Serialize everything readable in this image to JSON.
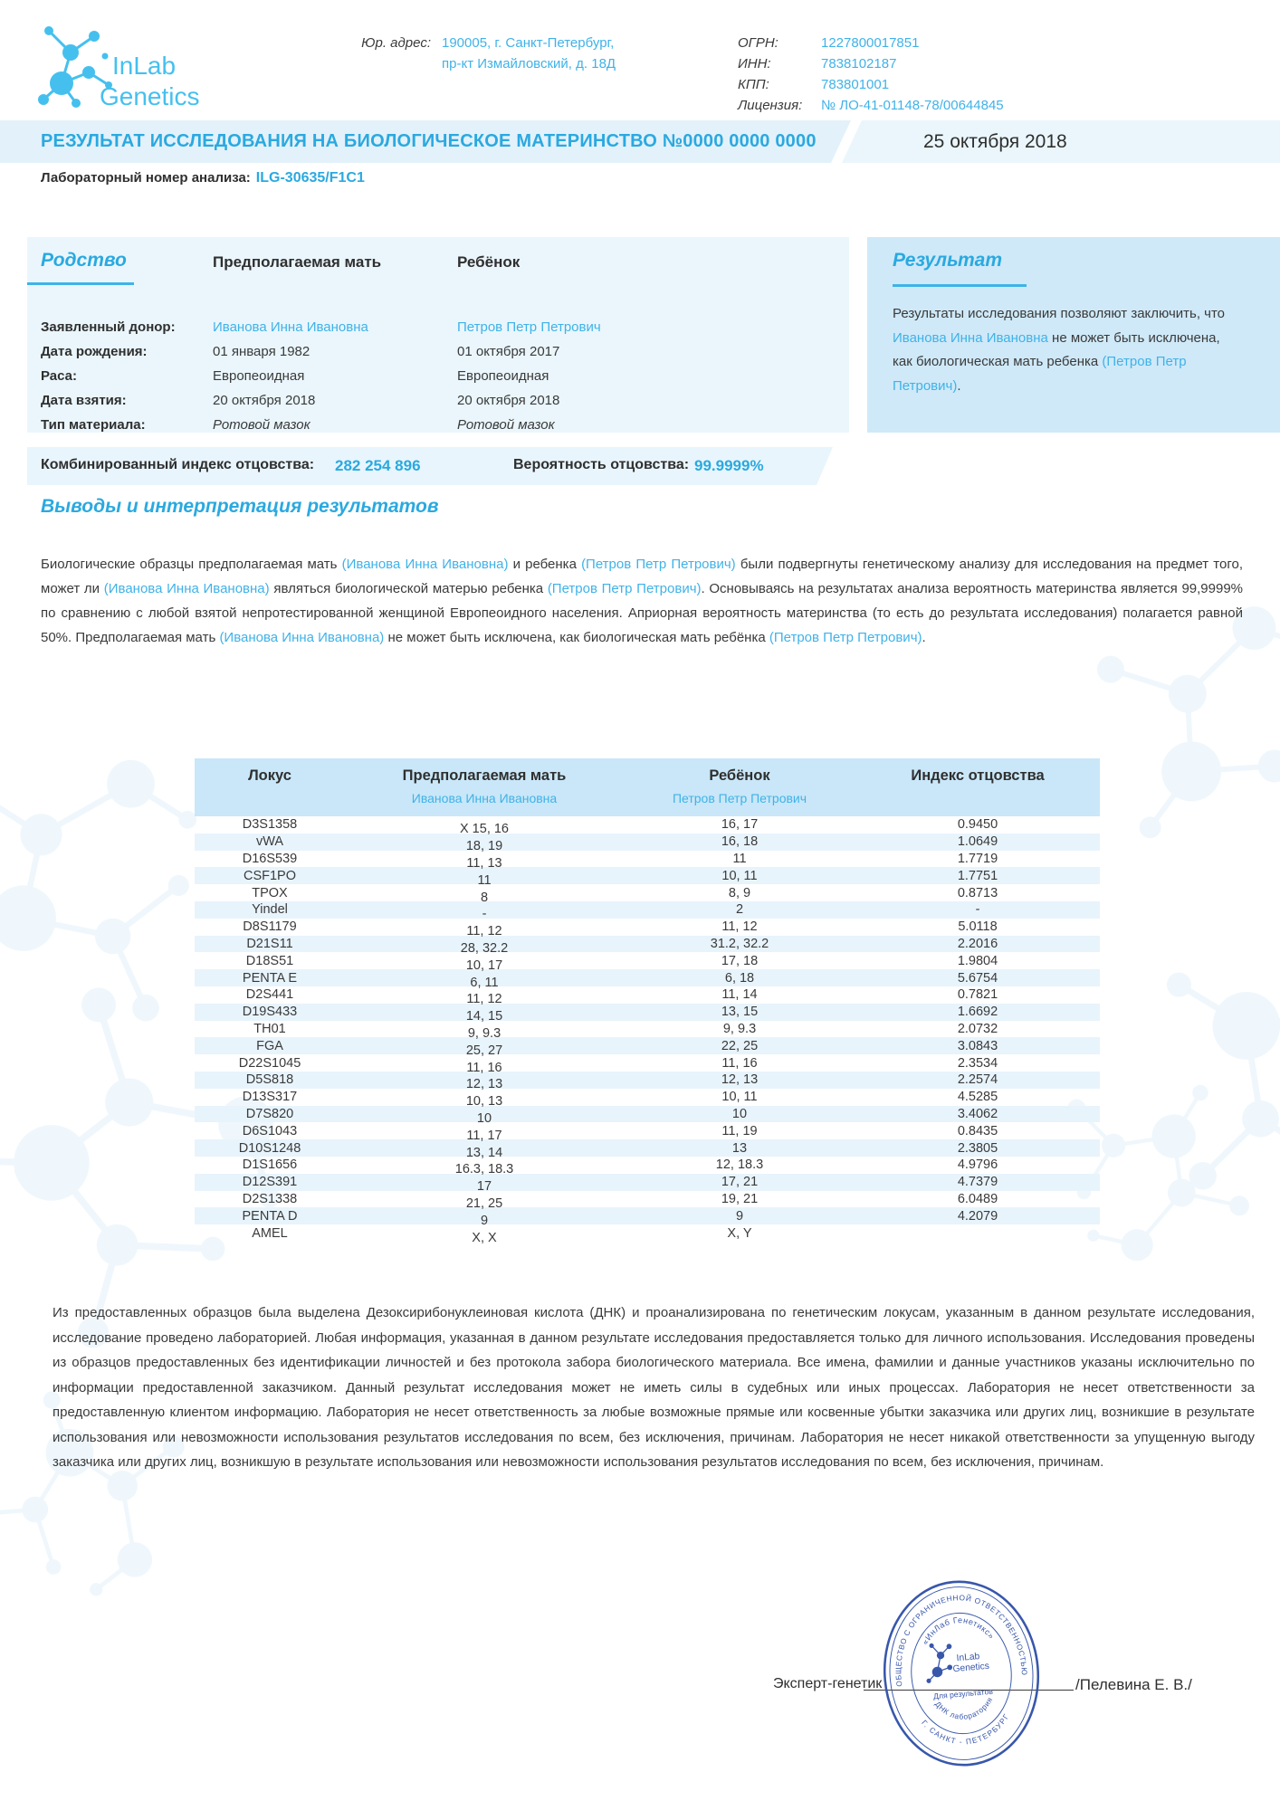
{
  "header": {
    "logo_line1": "InLab",
    "logo_line2": "Genetics",
    "address_label": "Юр. адрес:",
    "address_line1": "190005, г. Санкт-Петербург,",
    "address_line2": "пр-кт Измайловский, д. 18Д",
    "registry": [
      {
        "label": "ОГРН:",
        "value": "1227800017851"
      },
      {
        "label": "ИНН:",
        "value": "7838102187"
      },
      {
        "label": "КПП:",
        "value": "783801001"
      },
      {
        "label": "Лицензия:",
        "value": "№ ЛО-41-01148-78/00644845"
      }
    ]
  },
  "title_bar": {
    "title": "РЕЗУЛЬТАТ ИССЛЕДОВАНИЯ НА БИОЛОГИЧЕСКОЕ МАТЕРИНСТВО №0000 0000 0000",
    "date": "25 октября 2018"
  },
  "lab_number": {
    "label": "Лабораторный номер анализа:",
    "value": "ILG-30635/F1C1"
  },
  "kinship": {
    "heading": "Родство",
    "col_mother": "Предполагаемая мать",
    "col_child": "Ребёнок",
    "rows": [
      {
        "label": "Заявленный донор:",
        "mother": "Иванова Инна Ивановна",
        "child": "Петров Петр Петрович",
        "style": "blue"
      },
      {
        "label": "Дата рождения:",
        "mother": "01 января 1982",
        "child": "01 октября 2017",
        "style": "plain"
      },
      {
        "label": "Раса:",
        "mother": "Европеоидная",
        "child": "Европеоидная",
        "style": "plain"
      },
      {
        "label": "Дата взятия:",
        "mother": "20 октября 2018",
        "child": "20 октября 2018",
        "style": "plain"
      },
      {
        "label": "Тип материала:",
        "mother": "Ротовой мазок",
        "child": "Ротовой мазок",
        "style": "italic"
      }
    ]
  },
  "result_box": {
    "heading": "Результат",
    "parts": [
      {
        "t": "Результаты исследования позволяют заключить, что ",
        "blue": false
      },
      {
        "t": "Иванова Инна Ивановна",
        "blue": true
      },
      {
        "t": " не может быть исключена, как биологическая мать ребенка ",
        "blue": false
      },
      {
        "t": "(Петров Петр Петрович)",
        "blue": true
      },
      {
        "t": ".",
        "blue": false
      }
    ]
  },
  "index_bar": {
    "label_1": "Комбинированный индекс отцовства:",
    "value_1": "282 254 896",
    "label_2": "Вероятность отцовства:",
    "value_2": "99.9999%"
  },
  "conclusions_heading": "Выводы и интерпретация результатов",
  "intro_paragraph": [
    {
      "t": "Биологические образцы предполагаемая мать ",
      "blue": false
    },
    {
      "t": "(Иванова Инна Ивановна)",
      "blue": true
    },
    {
      "t": " и ребенка ",
      "blue": false
    },
    {
      "t": "(Петров Петр Петрович)",
      "blue": true
    },
    {
      "t": " были подвергнуты генетическому анализу для исследования на предмет того, может ли ",
      "blue": false
    },
    {
      "t": "(Иванова Инна Ивановна)",
      "blue": true
    },
    {
      "t": " являться биологической матерью ребенка ",
      "blue": false
    },
    {
      "t": "(Петров Петр Петрович)",
      "blue": true
    },
    {
      "t": ". Основываясь на результатах анализа вероятность материнства является 99,9999% по сравнению с любой взятой непротестированной женщиной Европеоидного населения. Априорная вероятность материнства (то есть до результата исследования) полагается равной 50%. Предполагаемая мать ",
      "blue": false
    },
    {
      "t": "(Иванова Инна Ивановна)",
      "blue": true
    },
    {
      "t": " не может быть исключена, как биологическая мать ребёнка ",
      "blue": false
    },
    {
      "t": "(Петров Петр Петрович)",
      "blue": true
    },
    {
      "t": ".",
      "blue": false
    }
  ],
  "table": {
    "col_locus": "Локус",
    "col_mother": "Предполагаемая мать",
    "col_mother_name": "Иванова Инна Ивановна",
    "col_child": "Ребёнок",
    "col_child_name": "Петров Петр Петрович",
    "col_index": "Индекс отцовства",
    "rows": [
      {
        "locus": "D3S1358",
        "mother": "X 15, 16",
        "child": "16, 17",
        "index": "0.9450"
      },
      {
        "locus": "vWA",
        "mother": "18, 19",
        "child": "16, 18",
        "index": "1.0649"
      },
      {
        "locus": "D16S539",
        "mother": "11, 13",
        "child": "11",
        "index": "1.7719"
      },
      {
        "locus": "CSF1PO",
        "mother": "11",
        "child": "10, 11",
        "index": "1.7751"
      },
      {
        "locus": "TPOX",
        "mother": "8",
        "child": "8, 9",
        "index": "0.8713"
      },
      {
        "locus": "Yindel",
        "mother": "-",
        "child": "2",
        "index": "-"
      },
      {
        "locus": "D8S1179",
        "mother": "11, 12",
        "child": "11, 12",
        "index": "5.0118"
      },
      {
        "locus": "D21S11",
        "mother": "28, 32.2",
        "child": "31.2, 32.2",
        "index": "2.2016"
      },
      {
        "locus": "D18S51",
        "mother": "10, 17",
        "child": "17, 18",
        "index": "1.9804"
      },
      {
        "locus": "PENTA E",
        "mother": "6, 11",
        "child": "6, 18",
        "index": "5.6754"
      },
      {
        "locus": "D2S441",
        "mother": "11, 12",
        "child": "11, 14",
        "index": "0.7821"
      },
      {
        "locus": "D19S433",
        "mother": "14, 15",
        "child": "13, 15",
        "index": "1.6692"
      },
      {
        "locus": "TH01",
        "mother": "9, 9.3",
        "child": "9, 9.3",
        "index": "2.0732"
      },
      {
        "locus": "FGA",
        "mother": "25, 27",
        "child": "22, 25",
        "index": "3.0843"
      },
      {
        "locus": "D22S1045",
        "mother": "11, 16",
        "child": "11, 16",
        "index": "2.3534"
      },
      {
        "locus": "D5S818",
        "mother": "12, 13",
        "child": "12, 13",
        "index": "2.2574"
      },
      {
        "locus": "D13S317",
        "mother": "10, 13",
        "child": "10, 11",
        "index": "4.5285"
      },
      {
        "locus": "D7S820",
        "mother": "10",
        "child": "10",
        "index": "3.4062"
      },
      {
        "locus": "D6S1043",
        "mother": "11, 17",
        "child": "11, 19",
        "index": "0.8435"
      },
      {
        "locus": "D10S1248",
        "mother": "13, 14",
        "child": "13",
        "index": "2.3805"
      },
      {
        "locus": "D1S1656",
        "mother": "16.3, 18.3",
        "child": "12, 18.3",
        "index": "4.9796"
      },
      {
        "locus": "D12S391",
        "mother": "17",
        "child": "17, 21",
        "index": "4.7379"
      },
      {
        "locus": "D2S1338",
        "mother": "21, 25",
        "child": "19, 21",
        "index": "6.0489"
      },
      {
        "locus": "PENTA D",
        "mother": "9",
        "child": "9",
        "index": "4.2079"
      },
      {
        "locus": "AMEL",
        "mother": "X, X",
        "child": "X, Y",
        "index": ""
      }
    ]
  },
  "disclaimer": "Из предоставленных образцов была выделена Дезоксирибонуклеиновая кислота (ДНК) и проанализирована по генетическим локусам, указанным в данном результате исследования, исследование проведено лабораторией. Любая информация, указанная в данном результате исследования предоставляется только для личного использования. Исследования проведены из образцов предоставленных без идентификации личностей и без протокола забора биологического материала.  Все имена, фамилии и данные участников указаны исключительно по информации предоставленной заказчиком. Данный результат исследования может не иметь силы в судебных или иных процессах. Лаборатория не несет ответственности за предоставленную клиентом информацию. Лаборатория не несет ответственность за любые возможные прямые или косвенные убытки заказчика или других лиц, возникшие в результате использования или невозможности использования результатов исследования по всем, без исключения, причинам.  Лаборатория не несет никакой ответственности за упущенную выгоду заказчика или других лиц, возникшую в результате использования или невозможности использования результатов исследования по всем, без исключения, причинам.",
  "signature": {
    "role": "Эксперт-генетик",
    "name": "/Пелевина Е. В./"
  },
  "stamp": {
    "outer_top": "ОБЩЕСТВО С ОГРАНИЧЕННОЙ ОТВЕТСТВЕННОСТЬЮ",
    "outer_bottom": "Г. САНКТ - ПЕТЕРБУРГ",
    "inner_top": "«ИнЛаб Генетикс»",
    "inner_bottom": "ДНК лаборатория",
    "logo_line1": "InLab",
    "logo_line2": "Genetics",
    "tagline": "Для результатов"
  },
  "colors": {
    "accent_blue": "#3fb2e8",
    "title_blue": "#2aa9e0",
    "panel_light": "#eaf6fc",
    "panel_result": "#cfe9f8",
    "table_header": "#c9e7f8",
    "stamp_blue": "#3857ab"
  }
}
